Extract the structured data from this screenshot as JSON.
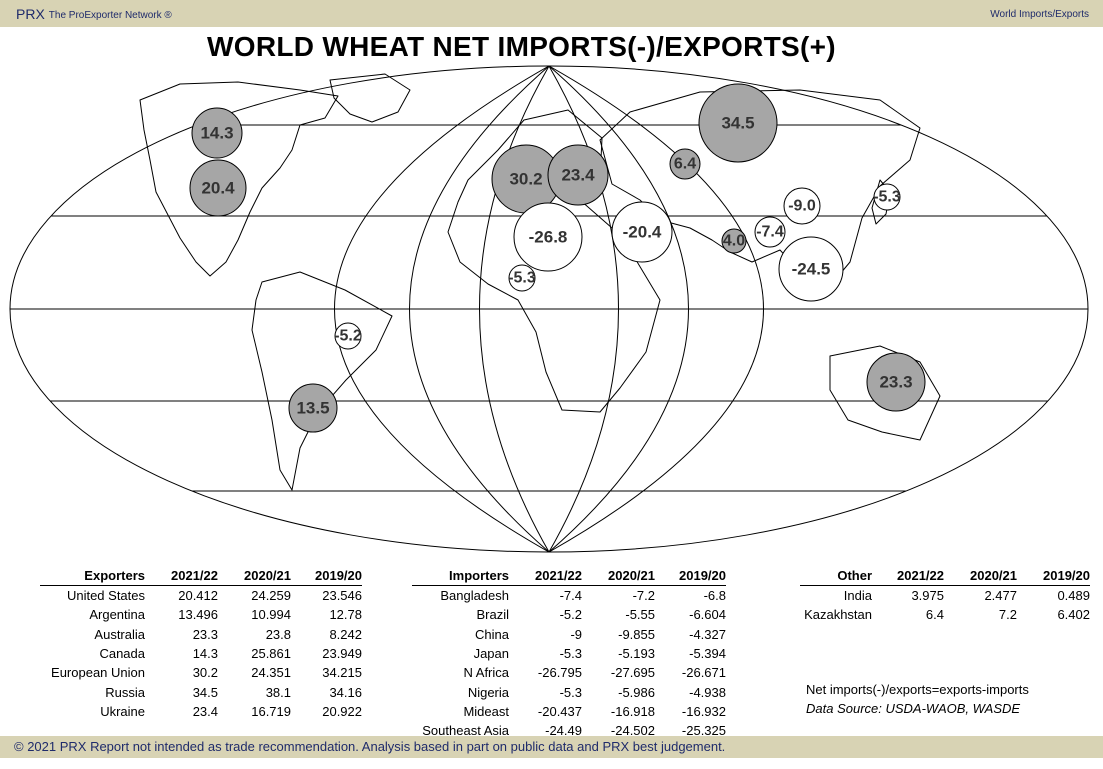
{
  "header": {
    "brand": "PRX",
    "network": "The ProExporter Network ®",
    "section": "World Imports/Exports"
  },
  "title": "WORLD WHEAT NET IMPORTS(-)/EXPORTS(+)",
  "map_labels": [
    {
      "label": "14.3",
      "type": "export",
      "region": "Canada"
    },
    {
      "label": "20.4",
      "type": "export",
      "region": "United States"
    },
    {
      "label": "34.5",
      "type": "export",
      "region": "Russia"
    },
    {
      "label": "30.2",
      "type": "export",
      "region": "European Union"
    },
    {
      "label": "23.4",
      "type": "export",
      "region": "Ukraine"
    },
    {
      "label": "6.4",
      "type": "export",
      "region": "Kazakhstan"
    },
    {
      "label": "4.0",
      "type": "export",
      "region": "India"
    },
    {
      "label": "13.5",
      "type": "export",
      "region": "Argentina"
    },
    {
      "label": "23.3",
      "type": "export",
      "region": "Australia"
    },
    {
      "label": "-26.8",
      "type": "import",
      "region": "N Africa"
    },
    {
      "label": "-20.4",
      "type": "import",
      "region": "Mideast"
    },
    {
      "label": "-9.0",
      "type": "import",
      "region": "China"
    },
    {
      "label": "-5.3",
      "type": "import",
      "region": "Japan"
    },
    {
      "label": "-7.4",
      "type": "import",
      "region": "Bangladesh"
    },
    {
      "label": "-24.5",
      "type": "import",
      "region": "Southeast Asia"
    },
    {
      "label": "-5.3",
      "type": "import",
      "region": "Nigeria"
    },
    {
      "label": "-5.2",
      "type": "import",
      "region": "Brazil"
    }
  ],
  "colors": {
    "export_bubble": "#a6a6a6",
    "import_bubble": "#ffffff",
    "banner": "#d8d3b4",
    "banner_text": "#1f2b6b"
  },
  "exporters": {
    "headers": [
      "Exporters",
      "2021/22",
      "2020/21",
      "2019/20"
    ],
    "rows": [
      [
        "United States",
        "20.412",
        "24.259",
        "23.546"
      ],
      [
        "Argentina",
        "13.496",
        "10.994",
        "12.78"
      ],
      [
        "Australia",
        "23.3",
        "23.8",
        "8.242"
      ],
      [
        "Canada",
        "14.3",
        "25.861",
        "23.949"
      ],
      [
        "European Union",
        "30.2",
        "24.351",
        "34.215"
      ],
      [
        "Russia",
        "34.5",
        "38.1",
        "34.16"
      ],
      [
        "Ukraine",
        "23.4",
        "16.719",
        "20.922"
      ]
    ]
  },
  "importers": {
    "headers": [
      "Importers",
      "2021/22",
      "2020/21",
      "2019/20"
    ],
    "rows": [
      [
        "Bangladesh",
        "-7.4",
        "-7.2",
        "-6.8"
      ],
      [
        "Brazil",
        "-5.2",
        "-5.55",
        "-6.604"
      ],
      [
        "China",
        "-9",
        "-9.855",
        "-4.327"
      ],
      [
        "Japan",
        "-5.3",
        "-5.193",
        "-5.394"
      ],
      [
        "N Africa",
        "-26.795",
        "-27.695",
        "-26.671"
      ],
      [
        "Nigeria",
        "-5.3",
        "-5.986",
        "-4.938"
      ],
      [
        "Mideast",
        "-20.437",
        "-16.918",
        "-16.932"
      ],
      [
        "Southeast Asia",
        "-24.49",
        "-24.502",
        "-25.325"
      ]
    ]
  },
  "other": {
    "headers": [
      "Other",
      "2021/22",
      "2020/21",
      "2019/20"
    ],
    "rows": [
      [
        "India",
        "3.975",
        "2.477",
        "0.489"
      ],
      [
        "Kazakhstan",
        "6.4",
        "7.2",
        "6.402"
      ]
    ]
  },
  "notes": {
    "definition": "Net imports(-)/exports=exports-imports",
    "source": "Data Source: USDA-WAOB, WASDE"
  },
  "footer": "© 2021 PRX  Report not intended as trade recommendation. Analysis based in part on public data and PRX best judgement."
}
